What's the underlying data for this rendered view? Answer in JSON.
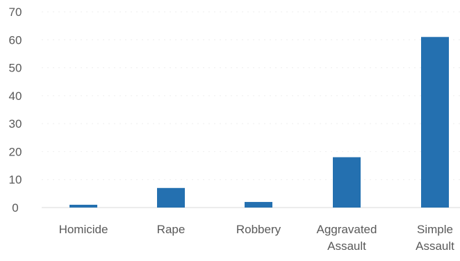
{
  "chart_data": {
    "type": "bar",
    "title": "",
    "xlabel": "",
    "ylabel": "",
    "categories": [
      [
        "Homicide"
      ],
      [
        "Rape"
      ],
      [
        "Robbery"
      ],
      [
        "Aggravated",
        "Assault"
      ],
      [
        "Simple",
        "Assault"
      ]
    ],
    "values": [
      1,
      7,
      2,
      18,
      61
    ],
    "ylim": [
      0,
      70
    ],
    "yticks": [
      "0",
      "10",
      "20",
      "30",
      "40",
      "50",
      "60",
      "70"
    ],
    "ytick_values": [
      0,
      10,
      20,
      30,
      40,
      50,
      60,
      70
    ],
    "bar_color": "#2470b0",
    "grid": true,
    "legend": "none"
  }
}
